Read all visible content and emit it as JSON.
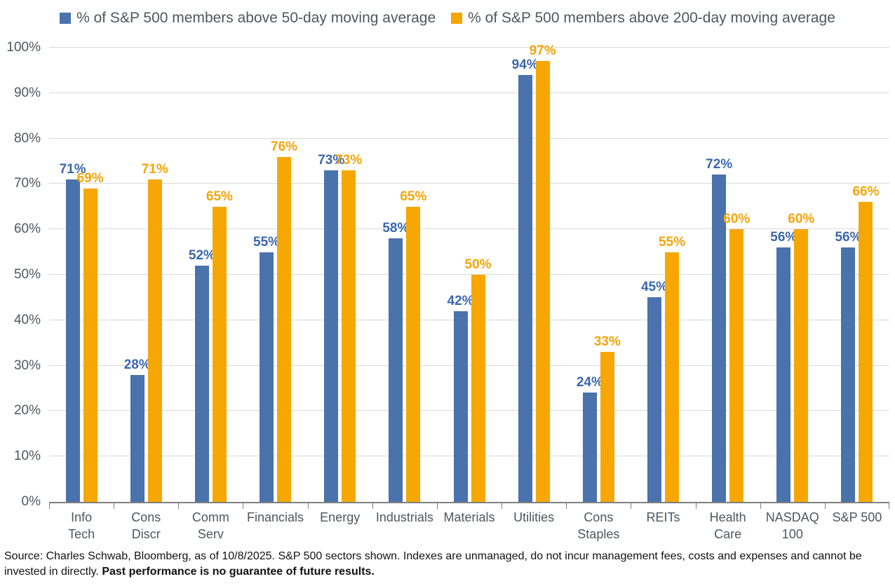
{
  "legend": {
    "items": [
      {
        "label": "% of S&P 500 members above 50-day moving average"
      },
      {
        "label": "% of S&P 500 members above 200-day moving average"
      }
    ]
  },
  "chart_data": {
    "type": "bar",
    "categories": [
      "Info\nTech",
      "Cons\nDiscr",
      "Comm\nServ",
      "Financials",
      "Energy",
      "Industrials",
      "Materials",
      "Utilities",
      "Cons\nStaples",
      "REITs",
      "Health\nCare",
      "NASDAQ\n100",
      "S&P 500"
    ],
    "series": [
      {
        "name": "% of S&P 500 members above 50-day moving average",
        "color": "#4A72AC",
        "label_color": "#3B68AC",
        "values": [
          71,
          28,
          52,
          55,
          73,
          58,
          42,
          94,
          24,
          45,
          72,
          56,
          56
        ]
      },
      {
        "name": "% of S&P 500 members above 200-day moving average",
        "color": "#F6A704",
        "label_color": "#F5A50A",
        "values": [
          69,
          71,
          65,
          76,
          73,
          65,
          50,
          97,
          33,
          55,
          60,
          60,
          66
        ]
      }
    ],
    "title": "",
    "xlabel": "",
    "ylabel": "",
    "ylim": [
      0,
      100
    ],
    "ytick_step": 10,
    "ytick_suffix": "%",
    "grid": true,
    "legend_position": "top",
    "data_labels": true,
    "data_label_suffix": "%"
  },
  "source": {
    "text": "Source: Charles Schwab, Bloomberg, as of 10/8/2025. S&P 500 sectors shown. Indexes are unmanaged, do not incur management fees, costs and expenses and cannot be invested in directly.",
    "bold_text": "Past performance is no guarantee of future results."
  },
  "colors": {
    "series_50day": "#4A72AC",
    "series_200day": "#F6A704",
    "axis_text": "#4D5760",
    "gridline": "#D9D9D9",
    "axis_line": "#7F7F7F"
  }
}
